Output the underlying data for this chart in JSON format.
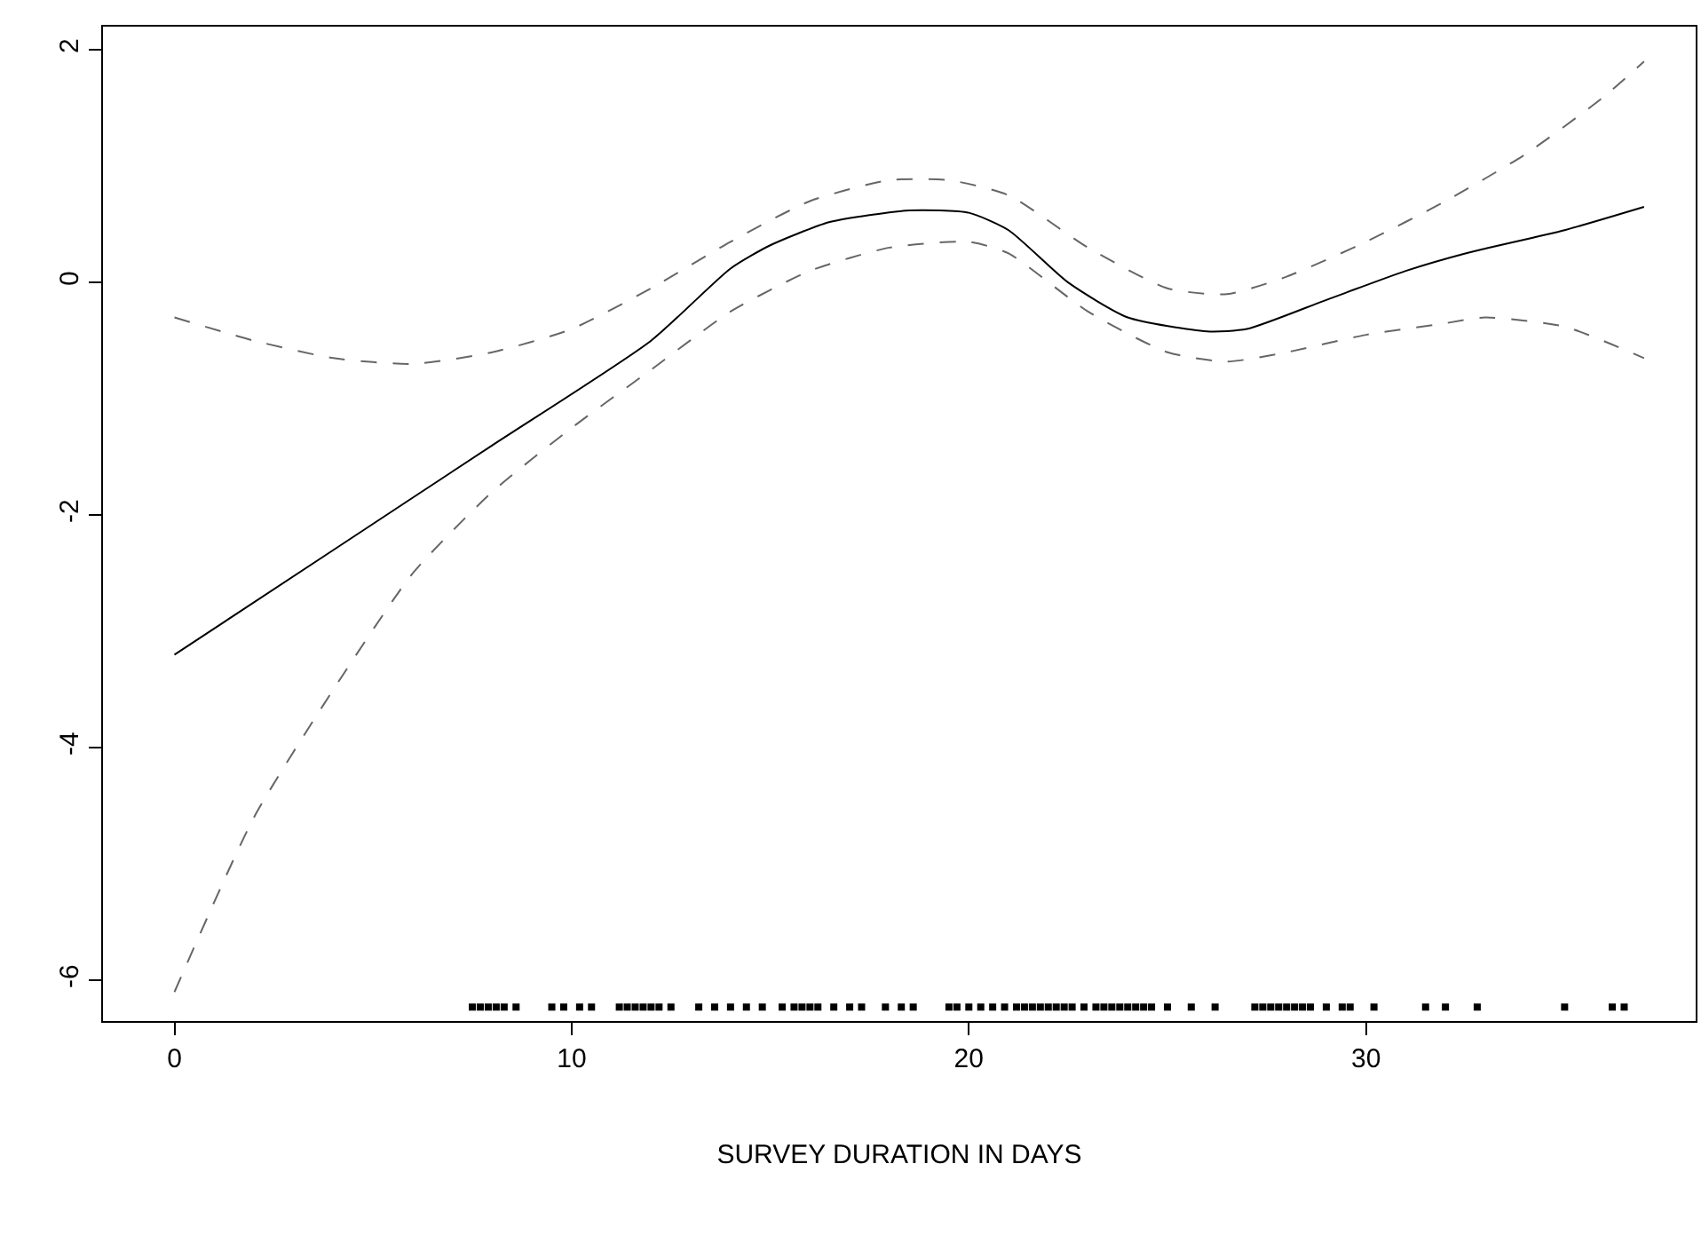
{
  "chart_data": {
    "type": "line",
    "xlabel": "SURVEY DURATION IN DAYS",
    "xlim": [
      -1.8,
      38.3
    ],
    "xticks": [
      0,
      10,
      20,
      30
    ],
    "ylim": [
      -6.35,
      2.2
    ],
    "yticks": [
      -6,
      -4,
      -2,
      0,
      2
    ],
    "series": [
      {
        "color": "#000000",
        "line_style": "solid",
        "x": [
          0,
          4,
          8,
          12,
          14,
          15,
          16.5,
          18.5,
          20,
          21,
          22.5,
          24,
          26,
          27,
          29,
          31,
          32.5,
          35,
          37
        ],
        "values": [
          -3.2,
          -2.3,
          -1.4,
          -0.5,
          0.12,
          0.32,
          0.52,
          0.62,
          0.6,
          0.45,
          0.0,
          -0.3,
          -0.42,
          -0.4,
          -0.15,
          0.1,
          0.25,
          0.45,
          0.65
        ]
      },
      {
        "color": "#666666",
        "line_style": "dashed",
        "x": [
          0,
          2,
          4,
          6,
          8,
          10,
          12,
          14,
          16,
          18,
          19.5,
          21,
          23,
          25,
          26.5,
          28,
          30,
          32,
          34,
          36,
          37
        ],
        "values": [
          -0.3,
          -0.5,
          -0.65,
          -0.7,
          -0.6,
          -0.4,
          -0.05,
          0.35,
          0.7,
          0.88,
          0.88,
          0.75,
          0.3,
          -0.05,
          -0.1,
          0.05,
          0.35,
          0.7,
          1.1,
          1.6,
          1.9
        ]
      },
      {
        "color": "#666666",
        "line_style": "dashed",
        "x": [
          0,
          2,
          4,
          6,
          8,
          10,
          12,
          14,
          16,
          18,
          20,
          21,
          23,
          25,
          26.5,
          28,
          30,
          32,
          33,
          35,
          37
        ],
        "values": [
          -6.1,
          -4.6,
          -3.5,
          -2.5,
          -1.8,
          -1.25,
          -0.75,
          -0.25,
          0.1,
          0.3,
          0.35,
          0.25,
          -0.25,
          -0.6,
          -0.68,
          -0.6,
          -0.45,
          -0.35,
          -0.3,
          -0.38,
          -0.65
        ]
      },
      {
        "type": "scatter",
        "marker": "square",
        "color": "#000000",
        "x": [
          7.5,
          7.7,
          7.9,
          8.1,
          8.3,
          8.6,
          9.5,
          9.8,
          10.2,
          10.5,
          11.2,
          11.4,
          11.6,
          11.8,
          12.0,
          12.2,
          12.5,
          13.2,
          13.6,
          14.0,
          14.4,
          14.8,
          15.3,
          15.6,
          15.8,
          16.0,
          16.2,
          16.6,
          17.0,
          17.3,
          17.9,
          18.3,
          18.6,
          19.5,
          19.7,
          20.0,
          20.3,
          20.6,
          20.9,
          21.2,
          21.4,
          21.6,
          21.8,
          22.0,
          22.2,
          22.4,
          22.6,
          22.9,
          23.2,
          23.4,
          23.6,
          23.8,
          24.0,
          24.2,
          24.4,
          24.6,
          25.0,
          25.6,
          26.2,
          27.2,
          27.4,
          27.6,
          27.8,
          28.0,
          28.2,
          28.4,
          28.6,
          29.0,
          29.4,
          29.6,
          30.2,
          31.5,
          32.0,
          32.8,
          35.0,
          36.2,
          36.5
        ],
        "values": [
          -6.23,
          -6.23,
          -6.23,
          -6.23,
          -6.23,
          -6.23,
          -6.23,
          -6.23,
          -6.23,
          -6.23,
          -6.23,
          -6.23,
          -6.23,
          -6.23,
          -6.23,
          -6.23,
          -6.23,
          -6.23,
          -6.23,
          -6.23,
          -6.23,
          -6.23,
          -6.23,
          -6.23,
          -6.23,
          -6.23,
          -6.23,
          -6.23,
          -6.23,
          -6.23,
          -6.23,
          -6.23,
          -6.23,
          -6.23,
          -6.23,
          -6.23,
          -6.23,
          -6.23,
          -6.23,
          -6.23,
          -6.23,
          -6.23,
          -6.23,
          -6.23,
          -6.23,
          -6.23,
          -6.23,
          -6.23,
          -6.23,
          -6.23,
          -6.23,
          -6.23,
          -6.23,
          -6.23,
          -6.23,
          -6.23,
          -6.23,
          -6.23,
          -6.23,
          -6.23,
          -6.23,
          -6.23,
          -6.23,
          -6.23,
          -6.23,
          -6.23,
          -6.23,
          -6.23,
          -6.23,
          -6.23,
          -6.23,
          -6.23,
          -6.23,
          -6.23,
          -6.23,
          -6.23,
          -6.23
        ]
      }
    ]
  }
}
